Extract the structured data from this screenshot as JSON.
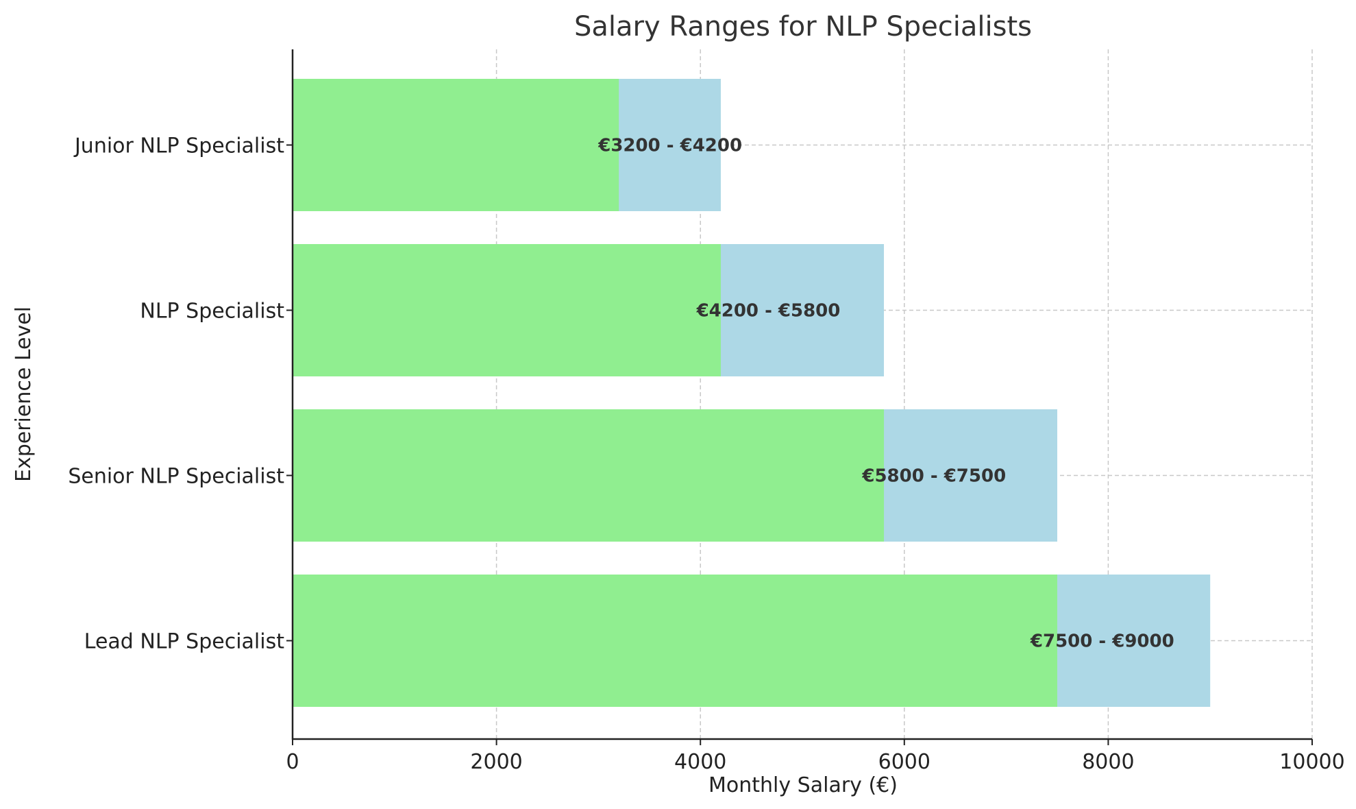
{
  "colors": {
    "lower_segment": "#90ee90",
    "upper_segment": "#add8e6",
    "text": "#333333",
    "grid": "#c8c8c8"
  },
  "chart_data": {
    "type": "bar",
    "orientation": "horizontal",
    "stacked": true,
    "title": "Salary Ranges for NLP Specialists",
    "xlabel": "Monthly Salary (€)",
    "ylabel": "Experience Level",
    "xlim": [
      0,
      10000
    ],
    "x_ticks": [
      0,
      2000,
      4000,
      6000,
      8000,
      10000
    ],
    "x_tick_labels": [
      "0",
      "2000",
      "4000",
      "6000",
      "8000",
      "10000"
    ],
    "grid": true,
    "categories": [
      "Junior NLP Specialist",
      "NLP Specialist",
      "Senior NLP Specialist",
      "Lead NLP Specialist"
    ],
    "min_salary": [
      3200,
      4200,
      5800,
      7500
    ],
    "max_salary": [
      4200,
      5800,
      7500,
      9000
    ],
    "data_labels": [
      "€3200 - €4200",
      "€4200 - €5800",
      "€5800 - €7500",
      "€7500 - €9000"
    ]
  }
}
